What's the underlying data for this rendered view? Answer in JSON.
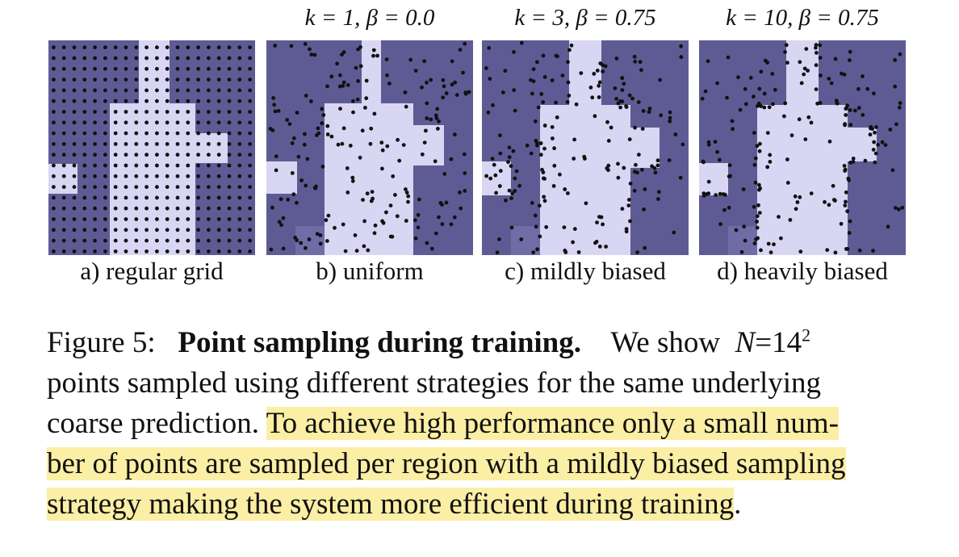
{
  "panels": [
    {
      "id": "a",
      "label": "a) regular grid",
      "param": ""
    },
    {
      "id": "b",
      "label": "b) uniform",
      "param": "k = 1, β = 0.0"
    },
    {
      "id": "c",
      "label": "c) mildly biased",
      "param": "k = 3, β = 0.75"
    },
    {
      "id": "d",
      "label": "d) heavily biased",
      "param": "k = 10, β = 0.75"
    }
  ],
  "colors": {
    "background_region": "#5e5b94",
    "foreground_region": "#d8d6f2",
    "mid_region": "#6f6ca6",
    "points": "#111111",
    "highlight": "#fbeea5"
  },
  "caption": {
    "prefix": "Figure 5:",
    "title": "Point sampling during training.",
    "line1_text": "We show",
    "math_var": "N",
    "math_eq": "=14",
    "math_exp": "2",
    "line2": "points sampled using different strategies for the same underlying",
    "line3_plain": "coarse prediction.",
    "line3_hl": "To achieve high performance only a small num-",
    "line4_hl": "ber of points are sampled per region with a mildly biased sampling",
    "line5_hl": "strategy making the system more efficient during training",
    "line5_tail": "."
  }
}
